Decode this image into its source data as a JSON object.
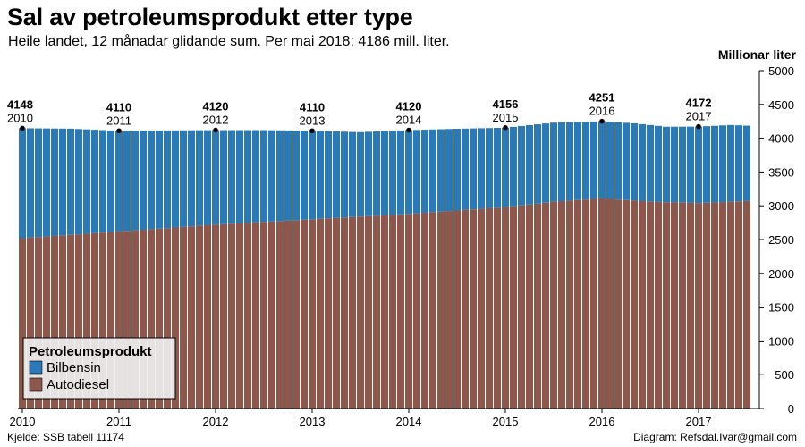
{
  "title": "Sal av petroleumsprodukt etter type",
  "subtitle": "Heile landet, 12 månadar glidande sum. Per mai 2018: 4186 mill. liter.",
  "source": "Kjelde: SSB tabell 11174",
  "credit": "Diagram: Refsdal.Ivar@gmail.com",
  "colors": {
    "bilbensin": "#2b79b7",
    "autodiesel": "#8d574c",
    "axis": "#000000"
  },
  "chart_data": {
    "type": "bar",
    "stacked": true,
    "unit_label": "Millionar liter",
    "ylim": [
      0,
      5000
    ],
    "y_ticks": [
      0,
      500,
      1000,
      1500,
      2000,
      2500,
      3000,
      3500,
      4000,
      4500,
      5000
    ],
    "x_tick_labels": [
      "2010",
      "2011",
      "2012",
      "2013",
      "2014",
      "2015",
      "2016",
      "2017"
    ],
    "legend": {
      "title": "Petroleumsprodukt",
      "position": "bottom-left",
      "entries": [
        "Bilbensin",
        "Autodiesel"
      ]
    },
    "annotations": [
      {
        "value": "4148",
        "year": "2010"
      },
      {
        "value": "4110",
        "year": "2011"
      },
      {
        "value": "4120",
        "year": "2012"
      },
      {
        "value": "4110",
        "year": "2013"
      },
      {
        "value": "4120",
        "year": "2014"
      },
      {
        "value": "4156",
        "year": "2015"
      },
      {
        "value": "4251",
        "year": "2016"
      },
      {
        "value": "4172",
        "year": "2017"
      }
    ],
    "anchors": {
      "total": [
        [
          0,
          4148
        ],
        [
          6,
          4142
        ],
        [
          12,
          4110
        ],
        [
          24,
          4120
        ],
        [
          30,
          4120
        ],
        [
          36,
          4110
        ],
        [
          42,
          4090
        ],
        [
          48,
          4120
        ],
        [
          54,
          4140
        ],
        [
          60,
          4156
        ],
        [
          66,
          4230
        ],
        [
          72,
          4251
        ],
        [
          76,
          4220
        ],
        [
          80,
          4170
        ],
        [
          84,
          4172
        ],
        [
          88,
          4195
        ],
        [
          90,
          4186
        ]
      ],
      "autodiesel": [
        [
          0,
          2520
        ],
        [
          12,
          2620
        ],
        [
          24,
          2720
        ],
        [
          36,
          2800
        ],
        [
          48,
          2880
        ],
        [
          60,
          2980
        ],
        [
          66,
          3060
        ],
        [
          72,
          3110
        ],
        [
          78,
          3060
        ],
        [
          84,
          3040
        ],
        [
          90,
          3070
        ]
      ]
    }
  }
}
